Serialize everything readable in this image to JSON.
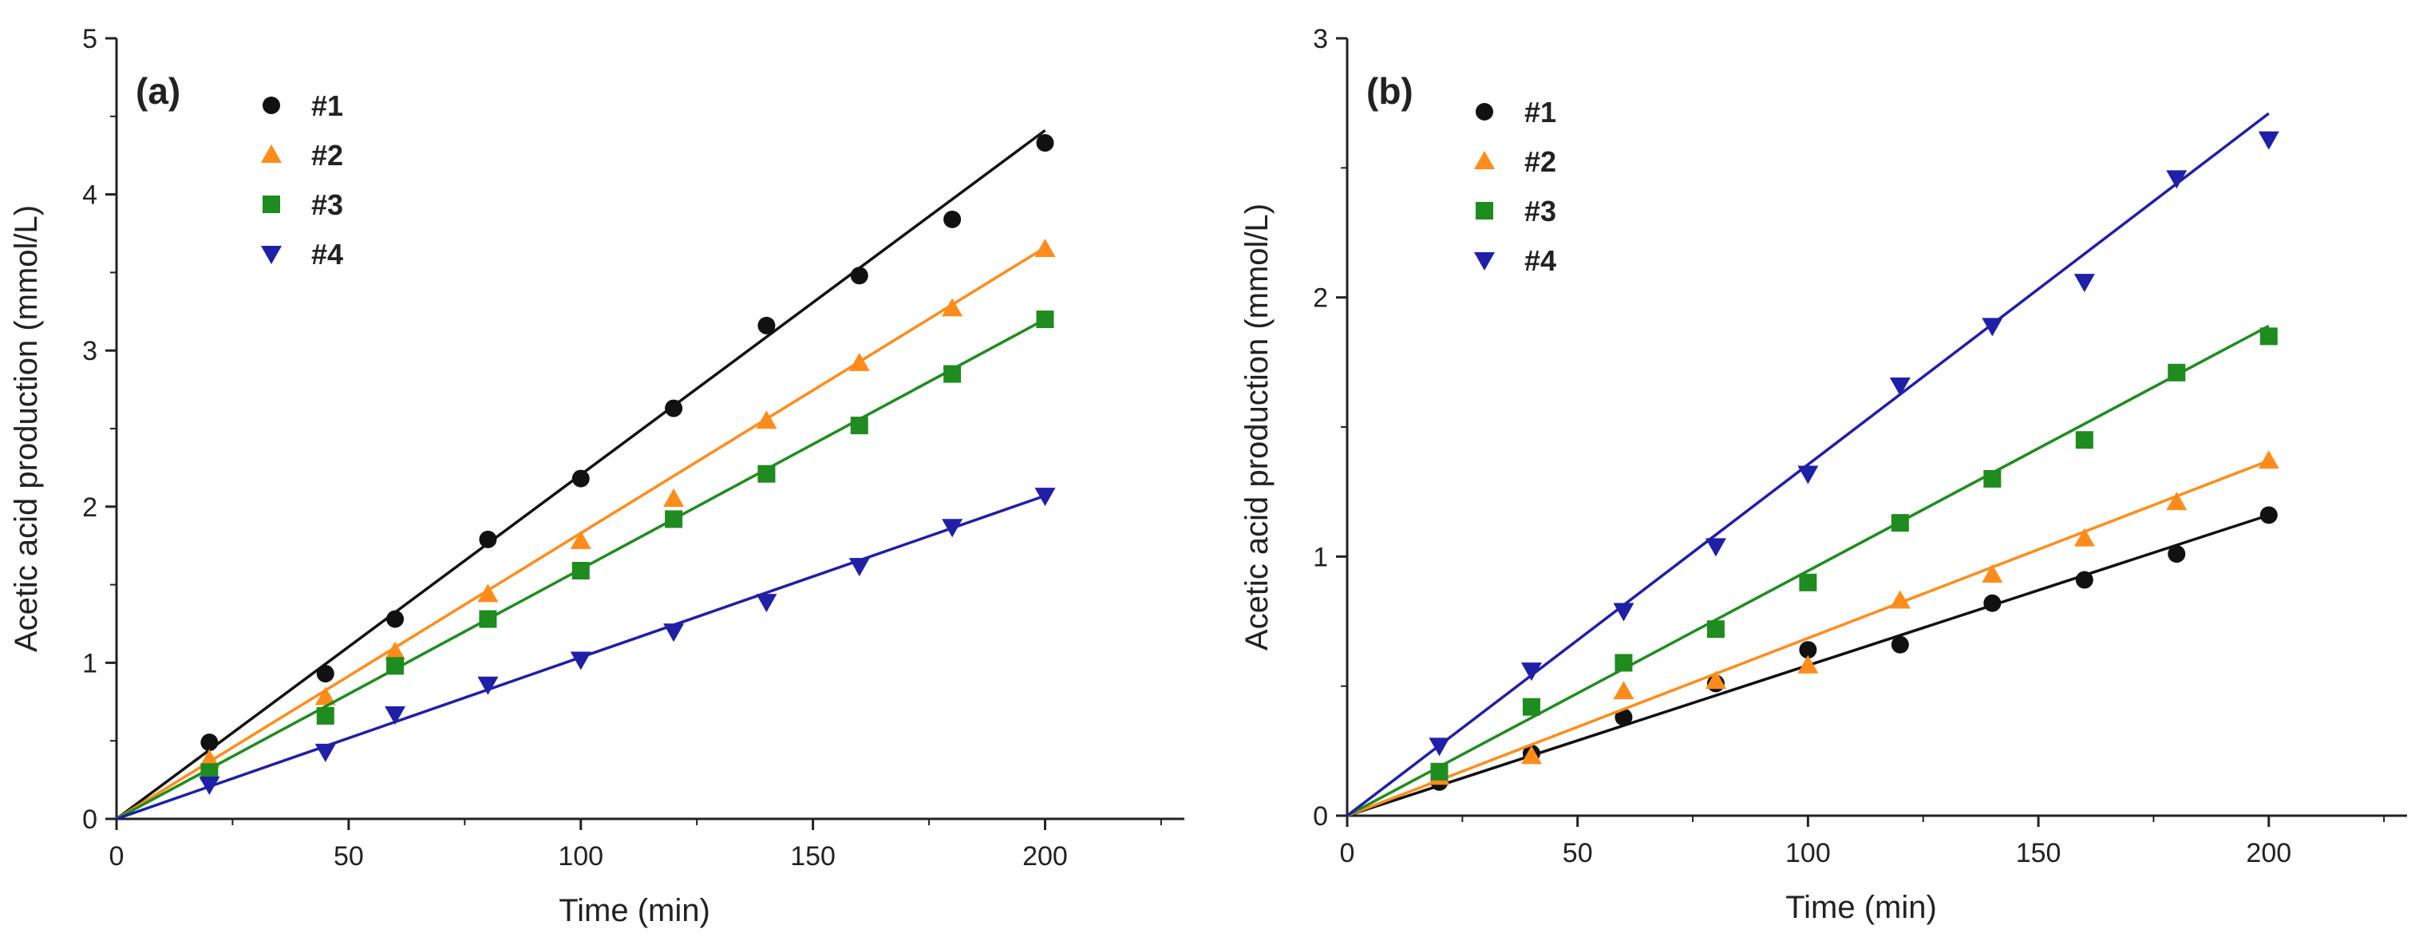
{
  "chart_data": [
    {
      "type": "scatter",
      "panel_label": "(a)",
      "xlabel": "Time (min)",
      "ylabel": "Acetic acid production (mmol/L)",
      "xlim": [
        0,
        230
      ],
      "ylim": [
        0,
        5
      ],
      "xticks": [
        0,
        50,
        100,
        150,
        200
      ],
      "yticks": [
        0,
        1,
        2,
        3,
        4,
        5
      ],
      "legend_position": "top-left",
      "series": [
        {
          "name": "#1",
          "color": "#111111",
          "marker": "circle",
          "x": [
            20,
            45,
            60,
            80,
            100,
            120,
            140,
            160,
            180,
            200
          ],
          "y": [
            0.49,
            0.93,
            1.28,
            1.79,
            2.18,
            2.63,
            3.16,
            3.48,
            3.84,
            4.33
          ],
          "fit": {
            "x": [
              0,
              200
            ],
            "y": [
              0,
              4.41
            ]
          }
        },
        {
          "name": "#2",
          "color": "#ff8c1a",
          "marker": "triangle-up",
          "x": [
            20,
            45,
            60,
            80,
            100,
            120,
            140,
            160,
            180,
            200
          ],
          "y": [
            0.38,
            0.78,
            1.07,
            1.44,
            1.78,
            2.05,
            2.55,
            2.92,
            3.27,
            3.65
          ],
          "fit": {
            "x": [
              0,
              200
            ],
            "y": [
              0,
              3.66
            ]
          }
        },
        {
          "name": "#3",
          "color": "#1e8c1e",
          "marker": "square",
          "x": [
            20,
            45,
            60,
            80,
            100,
            120,
            140,
            160,
            180,
            200
          ],
          "y": [
            0.3,
            0.66,
            0.98,
            1.28,
            1.59,
            1.92,
            2.21,
            2.52,
            2.85,
            3.2
          ],
          "fit": {
            "x": [
              0,
              200
            ],
            "y": [
              0,
              3.2
            ]
          }
        },
        {
          "name": "#4",
          "color": "#1f1fa8",
          "marker": "triangle-down",
          "x": [
            20,
            45,
            60,
            80,
            100,
            120,
            140,
            160,
            180,
            200
          ],
          "y": [
            0.22,
            0.43,
            0.67,
            0.86,
            1.02,
            1.2,
            1.39,
            1.62,
            1.87,
            2.07
          ],
          "fit": {
            "x": [
              0,
              200
            ],
            "y": [
              0,
              2.07
            ]
          }
        }
      ]
    },
    {
      "type": "scatter",
      "panel_label": "(b)",
      "xlabel": "Time (min)",
      "ylabel": "Acetic acid production (mmol/L)",
      "xlim": [
        0,
        230
      ],
      "ylim": [
        0,
        3
      ],
      "xticks": [
        0,
        50,
        100,
        150,
        200
      ],
      "yticks": [
        0,
        1,
        2,
        3
      ],
      "legend_position": "top-left",
      "series": [
        {
          "name": "#1",
          "color": "#111111",
          "marker": "circle",
          "x": [
            20,
            40,
            60,
            80,
            100,
            120,
            140,
            160,
            180,
            200
          ],
          "y": [
            0.13,
            0.24,
            0.38,
            0.51,
            0.64,
            0.66,
            0.82,
            0.91,
            1.01,
            1.16
          ],
          "fit": {
            "x": [
              0,
              200
            ],
            "y": [
              0,
              1.16
            ]
          }
        },
        {
          "name": "#2",
          "color": "#ff8c1a",
          "marker": "triangle-up",
          "x": [
            20,
            40,
            60,
            80,
            100,
            120,
            140,
            160,
            180,
            200
          ],
          "y": [
            0.15,
            0.23,
            0.48,
            0.52,
            0.58,
            0.83,
            0.93,
            1.07,
            1.21,
            1.37
          ],
          "fit": {
            "x": [
              0,
              200
            ],
            "y": [
              0,
              1.37
            ]
          }
        },
        {
          "name": "#3",
          "color": "#1e8c1e",
          "marker": "square",
          "x": [
            20,
            40,
            60,
            80,
            100,
            120,
            140,
            160,
            180,
            200
          ],
          "y": [
            0.17,
            0.42,
            0.59,
            0.72,
            0.9,
            1.13,
            1.3,
            1.45,
            1.71,
            1.85
          ],
          "fit": {
            "x": [
              0,
              200
            ],
            "y": [
              0,
              1.89
            ]
          }
        },
        {
          "name": "#4",
          "color": "#1f1fa8",
          "marker": "triangle-down",
          "x": [
            20,
            40,
            60,
            80,
            100,
            120,
            140,
            160,
            180,
            200
          ],
          "y": [
            0.27,
            0.56,
            0.79,
            1.04,
            1.32,
            1.66,
            1.89,
            2.06,
            2.46,
            2.61
          ],
          "fit": {
            "x": [
              0,
              200
            ],
            "y": [
              0,
              2.71
            ]
          }
        }
      ]
    }
  ]
}
